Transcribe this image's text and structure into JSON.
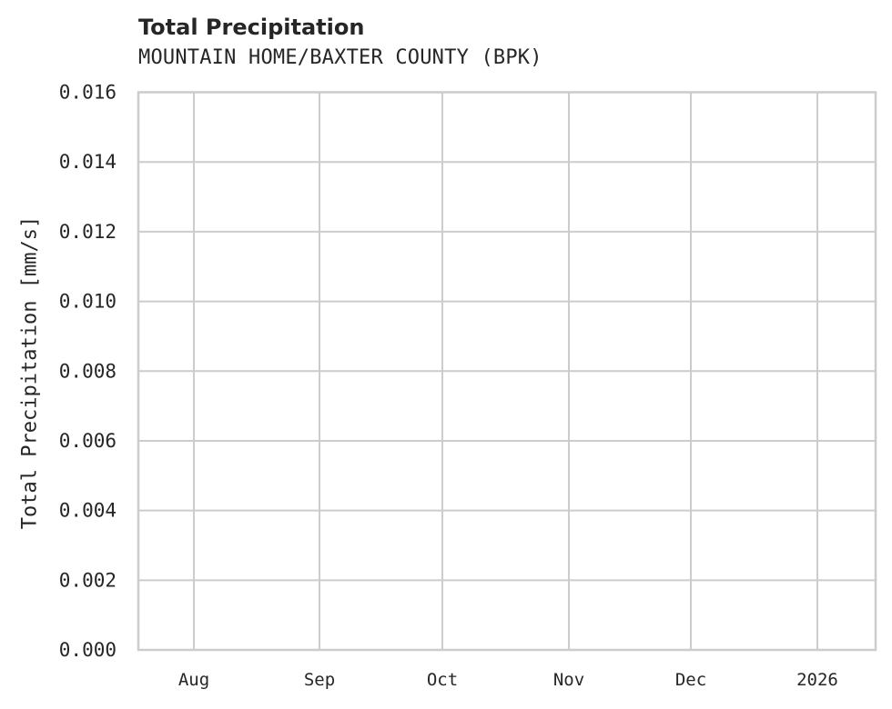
{
  "chart_data": {
    "type": "line",
    "title": "Total Precipitation",
    "subtitle": "MOUNTAIN HOME/BAXTER COUNTY (BPK)",
    "xlabel": "",
    "ylabel": "Total Precipitation [mm/s]",
    "x_tick_labels": [
      "Aug",
      "Sep",
      "Oct",
      "Nov",
      "Dec",
      "2026"
    ],
    "y_tick_labels": [
      "0.000",
      "0.002",
      "0.004",
      "0.006",
      "0.008",
      "0.010",
      "0.012",
      "0.014",
      "0.016"
    ],
    "ylim": [
      0.0,
      0.016
    ],
    "grid": true,
    "legend": null,
    "series": [],
    "colors": {
      "grid": "#cccccc",
      "frame": "#cccccc",
      "text": "#262626"
    }
  }
}
